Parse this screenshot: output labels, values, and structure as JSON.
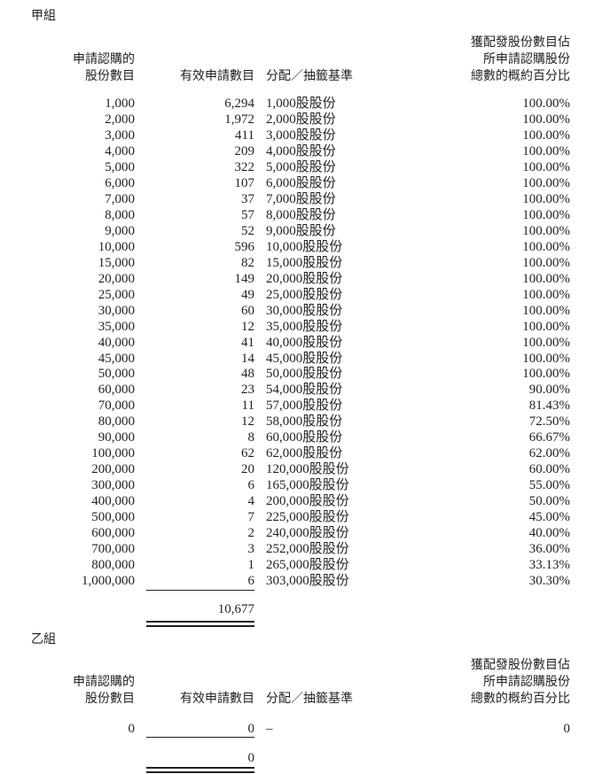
{
  "group_a": {
    "title": "甲組",
    "headers": {
      "col1": [
        "申請認購的",
        "股份數目"
      ],
      "col2": "有效申請數目",
      "col3": "分配／抽籤基準",
      "col4": [
        "獲配發股份數目佔",
        "所申請認購股份",
        "總數的概約百分比"
      ]
    },
    "rows": [
      [
        "1,000",
        "6,294",
        "1,000股股份",
        "100.00%"
      ],
      [
        "2,000",
        "1,972",
        "2,000股股份",
        "100.00%"
      ],
      [
        "3,000",
        "411",
        "3,000股股份",
        "100.00%"
      ],
      [
        "4,000",
        "209",
        "4,000股股份",
        "100.00%"
      ],
      [
        "5,000",
        "322",
        "5,000股股份",
        "100.00%"
      ],
      [
        "6,000",
        "107",
        "6,000股股份",
        "100.00%"
      ],
      [
        "7,000",
        "37",
        "7,000股股份",
        "100.00%"
      ],
      [
        "8,000",
        "57",
        "8,000股股份",
        "100.00%"
      ],
      [
        "9,000",
        "52",
        "9,000股股份",
        "100.00%"
      ],
      [
        "10,000",
        "596",
        "10,000股股份",
        "100.00%"
      ],
      [
        "15,000",
        "82",
        "15,000股股份",
        "100.00%"
      ],
      [
        "20,000",
        "149",
        "20,000股股份",
        "100.00%"
      ],
      [
        "25,000",
        "49",
        "25,000股股份",
        "100.00%"
      ],
      [
        "30,000",
        "60",
        "30,000股股份",
        "100.00%"
      ],
      [
        "35,000",
        "12",
        "35,000股股份",
        "100.00%"
      ],
      [
        "40,000",
        "41",
        "40,000股股份",
        "100.00%"
      ],
      [
        "45,000",
        "14",
        "45,000股股份",
        "100.00%"
      ],
      [
        "50,000",
        "48",
        "50,000股股份",
        "100.00%"
      ],
      [
        "60,000",
        "23",
        "54,000股股份",
        "90.00%"
      ],
      [
        "70,000",
        "11",
        "57,000股股份",
        "81.43%"
      ],
      [
        "80,000",
        "12",
        "58,000股股份",
        "72.50%"
      ],
      [
        "90,000",
        "8",
        "60,000股股份",
        "66.67%"
      ],
      [
        "100,000",
        "62",
        "62,000股股份",
        "62.00%"
      ],
      [
        "200,000",
        "20",
        "120,000股股份",
        "60.00%"
      ],
      [
        "300,000",
        "6",
        "165,000股股份",
        "55.00%"
      ],
      [
        "400,000",
        "4",
        "200,000股股份",
        "50.00%"
      ],
      [
        "500,000",
        "7",
        "225,000股股份",
        "45.00%"
      ],
      [
        "600,000",
        "2",
        "240,000股股份",
        "40.00%"
      ],
      [
        "700,000",
        "3",
        "252,000股股份",
        "36.00%"
      ],
      [
        "800,000",
        "1",
        "265,000股股份",
        "33.13%"
      ],
      [
        "1,000,000",
        "6",
        "303,000股股份",
        "30.30%"
      ]
    ],
    "total": "10,677"
  },
  "group_b": {
    "title": "乙組",
    "headers": {
      "col1": [
        "申請認購的",
        "股份數目"
      ],
      "col2": "有效申請數目",
      "col3": "分配／抽籤基準",
      "col4": [
        "獲配發股份數目佔",
        "所申請認購股份",
        "總數的概約百分比"
      ]
    },
    "rows": [
      [
        "0",
        "0",
        "–",
        "0"
      ]
    ],
    "total": "0"
  }
}
